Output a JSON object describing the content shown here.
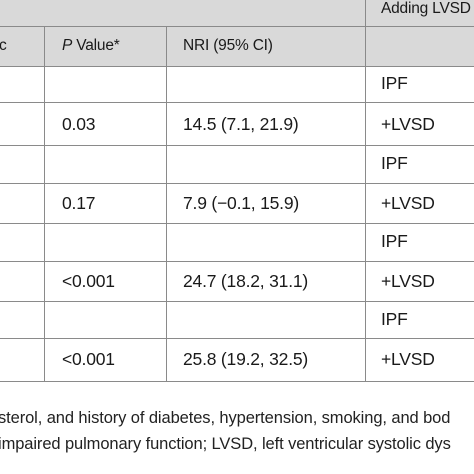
{
  "header": {
    "group_label": "Adding LVSD",
    "col0_fragment": "c",
    "pvalue_italic": "P",
    "pvalue_rest": " Value*",
    "nri_label": "NRI (95% CI)"
  },
  "rows": [
    {
      "pvalue": "",
      "nri": "",
      "model": "IPF"
    },
    {
      "pvalue": "0.03",
      "nri": "14.5 (7.1, 21.9)",
      "model": "+LVSD"
    },
    {
      "pvalue": "",
      "nri": "",
      "model": "IPF"
    },
    {
      "pvalue": "0.17",
      "nri": "7.9 (−0.1, 15.9)",
      "model": "+LVSD"
    },
    {
      "pvalue": "",
      "nri": "",
      "model": "IPF"
    },
    {
      "pvalue": "<0.001",
      "nri": "24.7 (18.2, 31.1)",
      "model": "+LVSD"
    },
    {
      "pvalue": "",
      "nri": "",
      "model": "IPF"
    },
    {
      "pvalue": "<0.001",
      "nri": "25.8 (19.2, 32.5)",
      "model": "+LVSD"
    }
  ],
  "footnote": {
    "line1": "sterol, and history of diabetes, hypertension, smoking, and bod",
    "line2": "impaired pulmonary function; LVSD, left ventricular systolic dys"
  }
}
